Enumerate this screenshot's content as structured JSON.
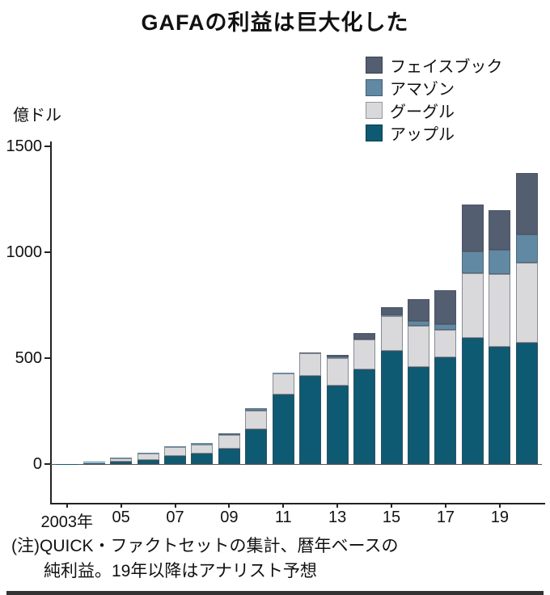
{
  "chart_data": {
    "type": "bar",
    "subtype": "stacked-bar",
    "title": "GAFAの利益は巨大化した",
    "unit_label": "億ドル",
    "ylim": [
      0,
      1500
    ],
    "yticks": [
      0,
      500,
      1000,
      1500
    ],
    "grid": false,
    "legend_position": "top-right",
    "years": [
      "2003",
      "2004",
      "2005",
      "2006",
      "2007",
      "2008",
      "2009",
      "2010",
      "2011",
      "2012",
      "2013",
      "2014",
      "2015",
      "2016",
      "2017",
      "2018",
      "2019",
      "2020"
    ],
    "x_tick_labels": [
      "2003年",
      "",
      "05",
      "",
      "07",
      "",
      "09",
      "",
      "11",
      "",
      "13",
      "",
      "15",
      "",
      "17",
      "",
      "19",
      ""
    ],
    "series": [
      {
        "name": "アップル",
        "color": "#0e5a72",
        "values": [
          1,
          3,
          13,
          20,
          38,
          50,
          72,
          166,
          330,
          417,
          370,
          445,
          534,
          457,
          505,
          595,
          553,
          574
        ]
      },
      {
        "name": "グーグル",
        "color": "#d9d8db",
        "values": [
          1,
          4,
          15,
          31,
          42,
          42,
          65,
          85,
          97,
          107,
          129,
          144,
          163,
          195,
          127,
          307,
          343,
          375
        ]
      },
      {
        "name": "アマゾン",
        "color": "#6189a3",
        "values": [
          0,
          6,
          4,
          2,
          5,
          6,
          9,
          12,
          6,
          0,
          3,
          0,
          6,
          24,
          30,
          101,
          116,
          135
        ]
      },
      {
        "name": "フェイスブック",
        "color": "#545e71",
        "values": [
          0,
          0,
          0,
          0,
          0,
          0,
          0,
          0,
          0,
          1,
          15,
          29,
          37,
          102,
          159,
          221,
          185,
          290
        ]
      }
    ],
    "legend": [
      {
        "name": "フェイスブック",
        "color": "#545e71"
      },
      {
        "name": "アマゾン",
        "color": "#6189a3"
      },
      {
        "name": "グーグル",
        "color": "#d9d8db"
      },
      {
        "name": "アップル",
        "color": "#0e5a72"
      }
    ],
    "note_lines": [
      "(注)QUICK・ファクトセットの集計、暦年ベースの",
      "純利益。19年以降はアナリスト予想"
    ]
  }
}
